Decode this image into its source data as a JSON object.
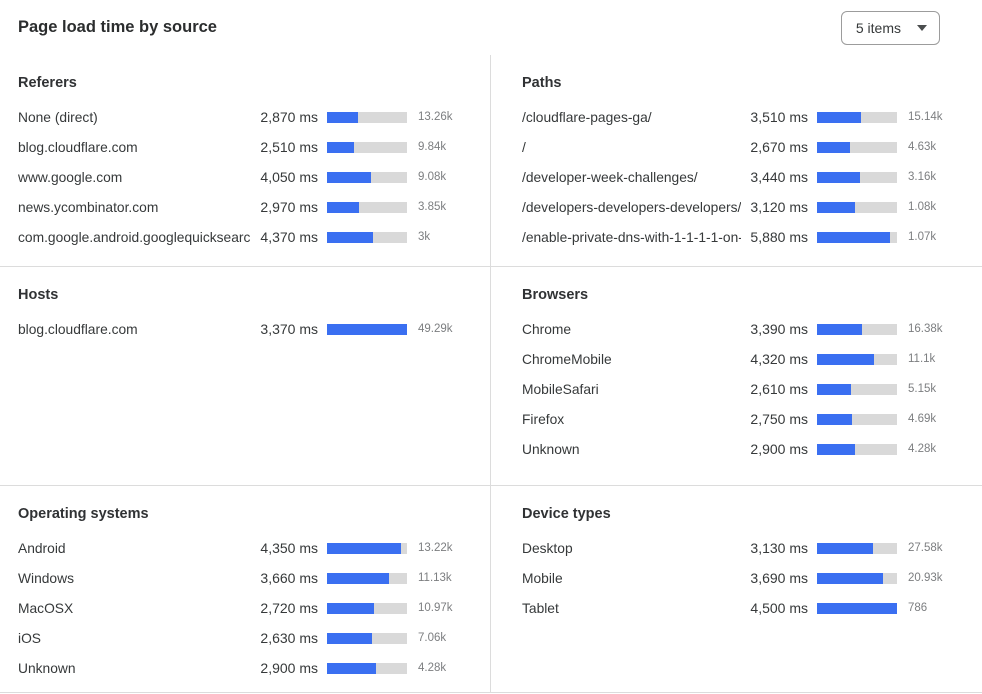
{
  "header": {
    "title": "Page load time by source",
    "items_selector": {
      "value": "5 items"
    }
  },
  "colors": {
    "bar_fill": "#3a6ff1",
    "bar_track": "#d9d9d9",
    "divider": "#dcdcdc"
  },
  "panels": [
    {
      "id": "referers",
      "title": "Referers",
      "rows": [
        {
          "label": "None (direct)",
          "time": "2,870 ms",
          "count": "13.26k",
          "fill_pct": 39
        },
        {
          "label": "blog.cloudflare.com",
          "time": "2,510 ms",
          "count": "9.84k",
          "fill_pct": 34
        },
        {
          "label": "www.google.com",
          "time": "4,050 ms",
          "count": "9.08k",
          "fill_pct": 55
        },
        {
          "label": "news.ycombinator.com",
          "time": "2,970 ms",
          "count": "3.85k",
          "fill_pct": 40
        },
        {
          "label": "com.google.android.googlequicksearc…",
          "time": "4,370 ms",
          "count": "3k",
          "fill_pct": 58
        }
      ]
    },
    {
      "id": "paths",
      "title": "Paths",
      "rows": [
        {
          "label": "/cloudflare-pages-ga/",
          "time": "3,510 ms",
          "count": "15.14k",
          "fill_pct": 55
        },
        {
          "label": "/",
          "time": "2,670 ms",
          "count": "4.63k",
          "fill_pct": 41
        },
        {
          "label": "/developer-week-challenges/",
          "time": "3,440 ms",
          "count": "3.16k",
          "fill_pct": 54
        },
        {
          "label": "/developers-developers-developers/",
          "time": "3,120 ms",
          "count": "1.08k",
          "fill_pct": 48
        },
        {
          "label": "/enable-private-dns-with-1-1-1-1-on-…",
          "time": "5,880 ms",
          "count": "1.07k",
          "fill_pct": 91
        }
      ]
    },
    {
      "id": "hosts",
      "title": "Hosts",
      "rows": [
        {
          "label": "blog.cloudflare.com",
          "time": "3,370 ms",
          "count": "49.29k",
          "fill_pct": 100
        }
      ]
    },
    {
      "id": "browsers",
      "title": "Browsers",
      "rows": [
        {
          "label": "Chrome",
          "time": "3,390 ms",
          "count": "16.38k",
          "fill_pct": 56
        },
        {
          "label": "ChromeMobile",
          "time": "4,320 ms",
          "count": "11.1k",
          "fill_pct": 71
        },
        {
          "label": "MobileSafari",
          "time": "2,610 ms",
          "count": "5.15k",
          "fill_pct": 42
        },
        {
          "label": "Firefox",
          "time": "2,750 ms",
          "count": "4.69k",
          "fill_pct": 44
        },
        {
          "label": "Unknown",
          "time": "2,900 ms",
          "count": "4.28k",
          "fill_pct": 48
        }
      ]
    },
    {
      "id": "operating-systems",
      "title": "Operating systems",
      "rows": [
        {
          "label": "Android",
          "time": "4,350 ms",
          "count": "13.22k",
          "fill_pct": 93
        },
        {
          "label": "Windows",
          "time": "3,660 ms",
          "count": "11.13k",
          "fill_pct": 78
        },
        {
          "label": "MacOSX",
          "time": "2,720 ms",
          "count": "10.97k",
          "fill_pct": 59
        },
        {
          "label": "iOS",
          "time": "2,630 ms",
          "count": "7.06k",
          "fill_pct": 56
        },
        {
          "label": "Unknown",
          "time": "2,900 ms",
          "count": "4.28k",
          "fill_pct": 61
        }
      ]
    },
    {
      "id": "device-types",
      "title": "Device types",
      "rows": [
        {
          "label": "Desktop",
          "time": "3,130 ms",
          "count": "27.58k",
          "fill_pct": 70
        },
        {
          "label": "Mobile",
          "time": "3,690 ms",
          "count": "20.93k",
          "fill_pct": 82
        },
        {
          "label": "Tablet",
          "time": "4,500 ms",
          "count": "786",
          "fill_pct": 100
        }
      ]
    }
  ]
}
